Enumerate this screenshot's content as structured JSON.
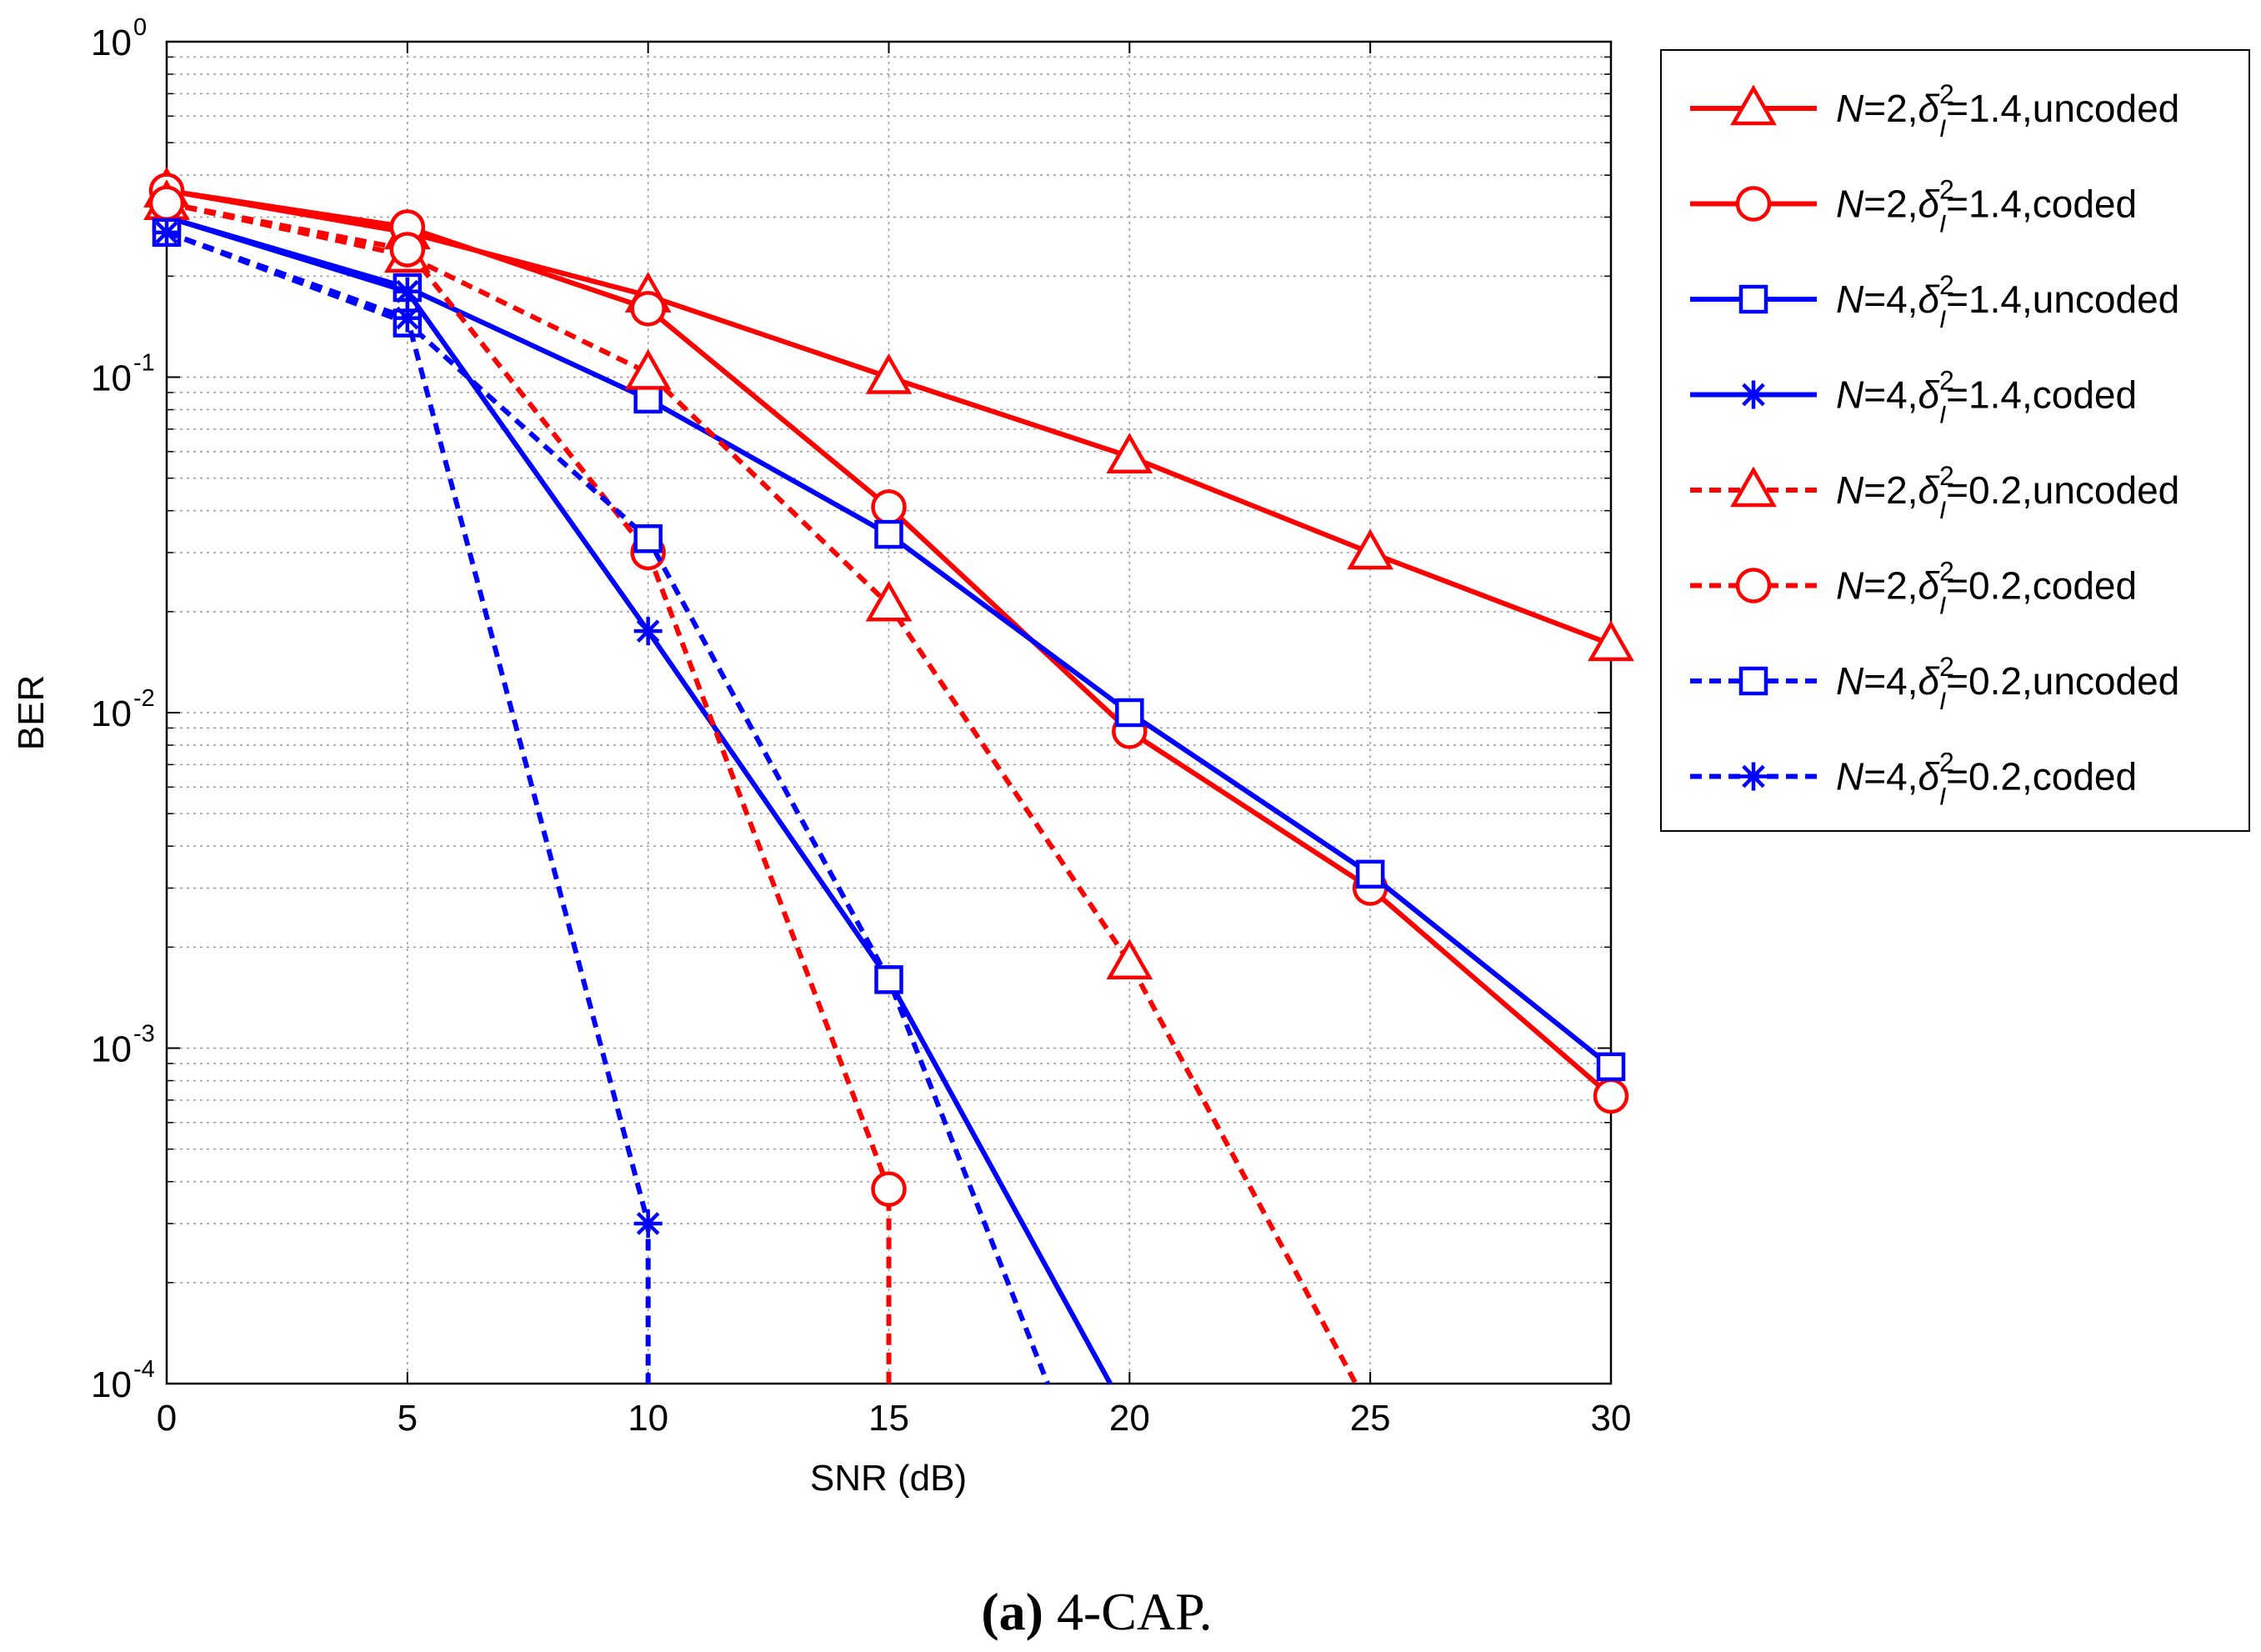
{
  "chart_data": {
    "type": "line",
    "yscale": "log",
    "xlabel": "SNR (dB)",
    "ylabel": "BER",
    "xlim": [
      0,
      30
    ],
    "ylim_exponents": [
      -4,
      0
    ],
    "x_ticks": [
      "0",
      "5",
      "10",
      "15",
      "20",
      "25",
      "30"
    ],
    "y_ticks": [
      {
        "base": "10",
        "exp": "0"
      },
      {
        "base": "10",
        "exp": "-1"
      },
      {
        "base": "10",
        "exp": "-2"
      },
      {
        "base": "10",
        "exp": "-3"
      },
      {
        "base": "10",
        "exp": "-4"
      }
    ],
    "grid": true,
    "legend_position": "outside-right",
    "x": [
      0,
      5,
      10,
      15,
      20,
      25,
      30
    ],
    "series": [
      {
        "label_n": "2",
        "label_var": "1.4",
        "label_type": "uncoded",
        "color": "#ff0000",
        "dash": false,
        "marker": "triangle",
        "values": [
          0.36,
          0.27,
          0.175,
          0.1,
          0.058,
          0.03,
          0.016
        ]
      },
      {
        "label_n": "2",
        "label_var": "1.4",
        "label_type": "coded",
        "color": "#ff0000",
        "dash": false,
        "marker": "circle",
        "values": [
          0.36,
          0.28,
          0.16,
          0.041,
          0.0088,
          0.003,
          0.00072
        ]
      },
      {
        "label_n": "4",
        "label_var": "1.4",
        "label_type": "uncoded",
        "color": "#0000ff",
        "dash": false,
        "marker": "square",
        "values": [
          0.3,
          0.185,
          0.086,
          0.034,
          0.01,
          0.0033,
          0.00088
        ]
      },
      {
        "label_n": "4",
        "label_var": "1.4",
        "label_type": "coded",
        "color": "#0000ff",
        "dash": false,
        "marker": "star",
        "values": [
          0.3,
          0.18,
          0.0175,
          0.0016,
          0.0001,
          null,
          null
        ],
        "markers_until": 4
      },
      {
        "label_n": "2",
        "label_var": "0.2",
        "label_type": "uncoded",
        "color": "#ff0000",
        "dash": true,
        "marker": "triangle",
        "values": [
          0.33,
          0.23,
          0.103,
          0.021,
          0.0018,
          0.0001,
          null
        ],
        "markers_until": 5
      },
      {
        "label_n": "2",
        "label_var": "0.2",
        "label_type": "coded",
        "color": "#ff0000",
        "dash": true,
        "marker": "circle",
        "values": [
          0.33,
          0.24,
          0.03,
          0.00038,
          0.0001,
          null,
          null
        ],
        "markers_until": 4,
        "drop_x": [
          15,
          15
        ]
      },
      {
        "label_n": "4",
        "label_var": "0.2",
        "label_type": "uncoded",
        "color": "#0000ff",
        "dash": true,
        "marker": "square",
        "values": [
          0.27,
          0.145,
          0.033,
          0.0016,
          0.0001,
          null,
          null
        ],
        "markers_until": 4,
        "tail_x": 18.3
      },
      {
        "label_n": "4",
        "label_var": "0.2",
        "label_type": "coded",
        "color": "#0000ff",
        "dash": true,
        "marker": "star",
        "values": [
          0.27,
          0.15,
          0.0003,
          0.0001,
          null,
          null,
          null
        ],
        "markers_until": 3,
        "drop_x": [
          10,
          10
        ]
      }
    ],
    "legend_items": [
      {
        "n": "N",
        "eq1": "=2,",
        "delta": "δ",
        "sup": "2",
        "sub": "I",
        "rest": "=1.4,uncoded"
      },
      {
        "n": "N",
        "eq1": "=2,",
        "delta": "δ",
        "sup": "2",
        "sub": "I",
        "rest": "=1.4,coded"
      },
      {
        "n": "N",
        "eq1": "=4,",
        "delta": "δ",
        "sup": "2",
        "sub": "I",
        "rest": "=1.4,uncoded"
      },
      {
        "n": "N",
        "eq1": "=4,",
        "delta": "δ",
        "sup": "2",
        "sub": "I",
        "rest": "=1.4,coded"
      },
      {
        "n": "N",
        "eq1": "=2,",
        "delta": "δ",
        "sup": "2",
        "sub": "I",
        "rest": "=0.2,uncoded"
      },
      {
        "n": "N",
        "eq1": "=2,",
        "delta": "δ",
        "sup": "2",
        "sub": "I",
        "rest": "=0.2,coded"
      },
      {
        "n": "N",
        "eq1": "=4,",
        "delta": "δ",
        "sup": "2",
        "sub": "I",
        "rest": "=0.2,uncoded"
      },
      {
        "n": "N",
        "eq1": "=4,",
        "delta": "δ",
        "sup": "2",
        "sub": "I",
        "rest": "=0.2,coded"
      }
    ]
  },
  "caption": {
    "label": "(a)",
    "text": " 4-CAP."
  }
}
